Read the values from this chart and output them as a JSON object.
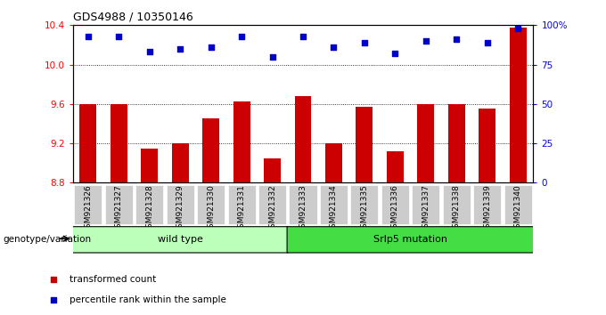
{
  "title": "GDS4988 / 10350146",
  "samples": [
    "GSM921326",
    "GSM921327",
    "GSM921328",
    "GSM921329",
    "GSM921330",
    "GSM921331",
    "GSM921332",
    "GSM921333",
    "GSM921334",
    "GSM921335",
    "GSM921336",
    "GSM921337",
    "GSM921338",
    "GSM921339",
    "GSM921340"
  ],
  "bar_values": [
    9.6,
    9.6,
    9.15,
    9.2,
    9.45,
    9.63,
    9.05,
    9.68,
    9.2,
    9.57,
    9.12,
    9.6,
    9.6,
    9.55,
    10.38
  ],
  "dot_values": [
    93,
    93,
    83,
    85,
    86,
    93,
    80,
    93,
    86,
    89,
    82,
    90,
    91,
    89,
    98
  ],
  "ylim_left": [
    8.8,
    10.4
  ],
  "ylim_right": [
    0,
    100
  ],
  "yticks_left": [
    8.8,
    9.2,
    9.6,
    10.0,
    10.4
  ],
  "yticks_right": [
    0,
    25,
    50,
    75,
    100
  ],
  "ytick_labels_right": [
    "0",
    "25",
    "50",
    "75",
    "100%"
  ],
  "grid_values": [
    9.2,
    9.6,
    10.0
  ],
  "bar_color": "#cc0000",
  "dot_color": "#0000cc",
  "bar_bottom": 8.8,
  "groups": [
    {
      "label": "wild type",
      "start": 0,
      "end": 7,
      "color": "#bbffbb"
    },
    {
      "label": "Srlp5 mutation",
      "start": 7,
      "end": 15,
      "color": "#44dd44"
    }
  ],
  "legend_items": [
    {
      "label": "transformed count",
      "color": "#cc0000"
    },
    {
      "label": "percentile rank within the sample",
      "color": "#0000cc"
    }
  ],
  "genotype_label": "genotype/variation",
  "ticklabel_bg": "#cccccc"
}
